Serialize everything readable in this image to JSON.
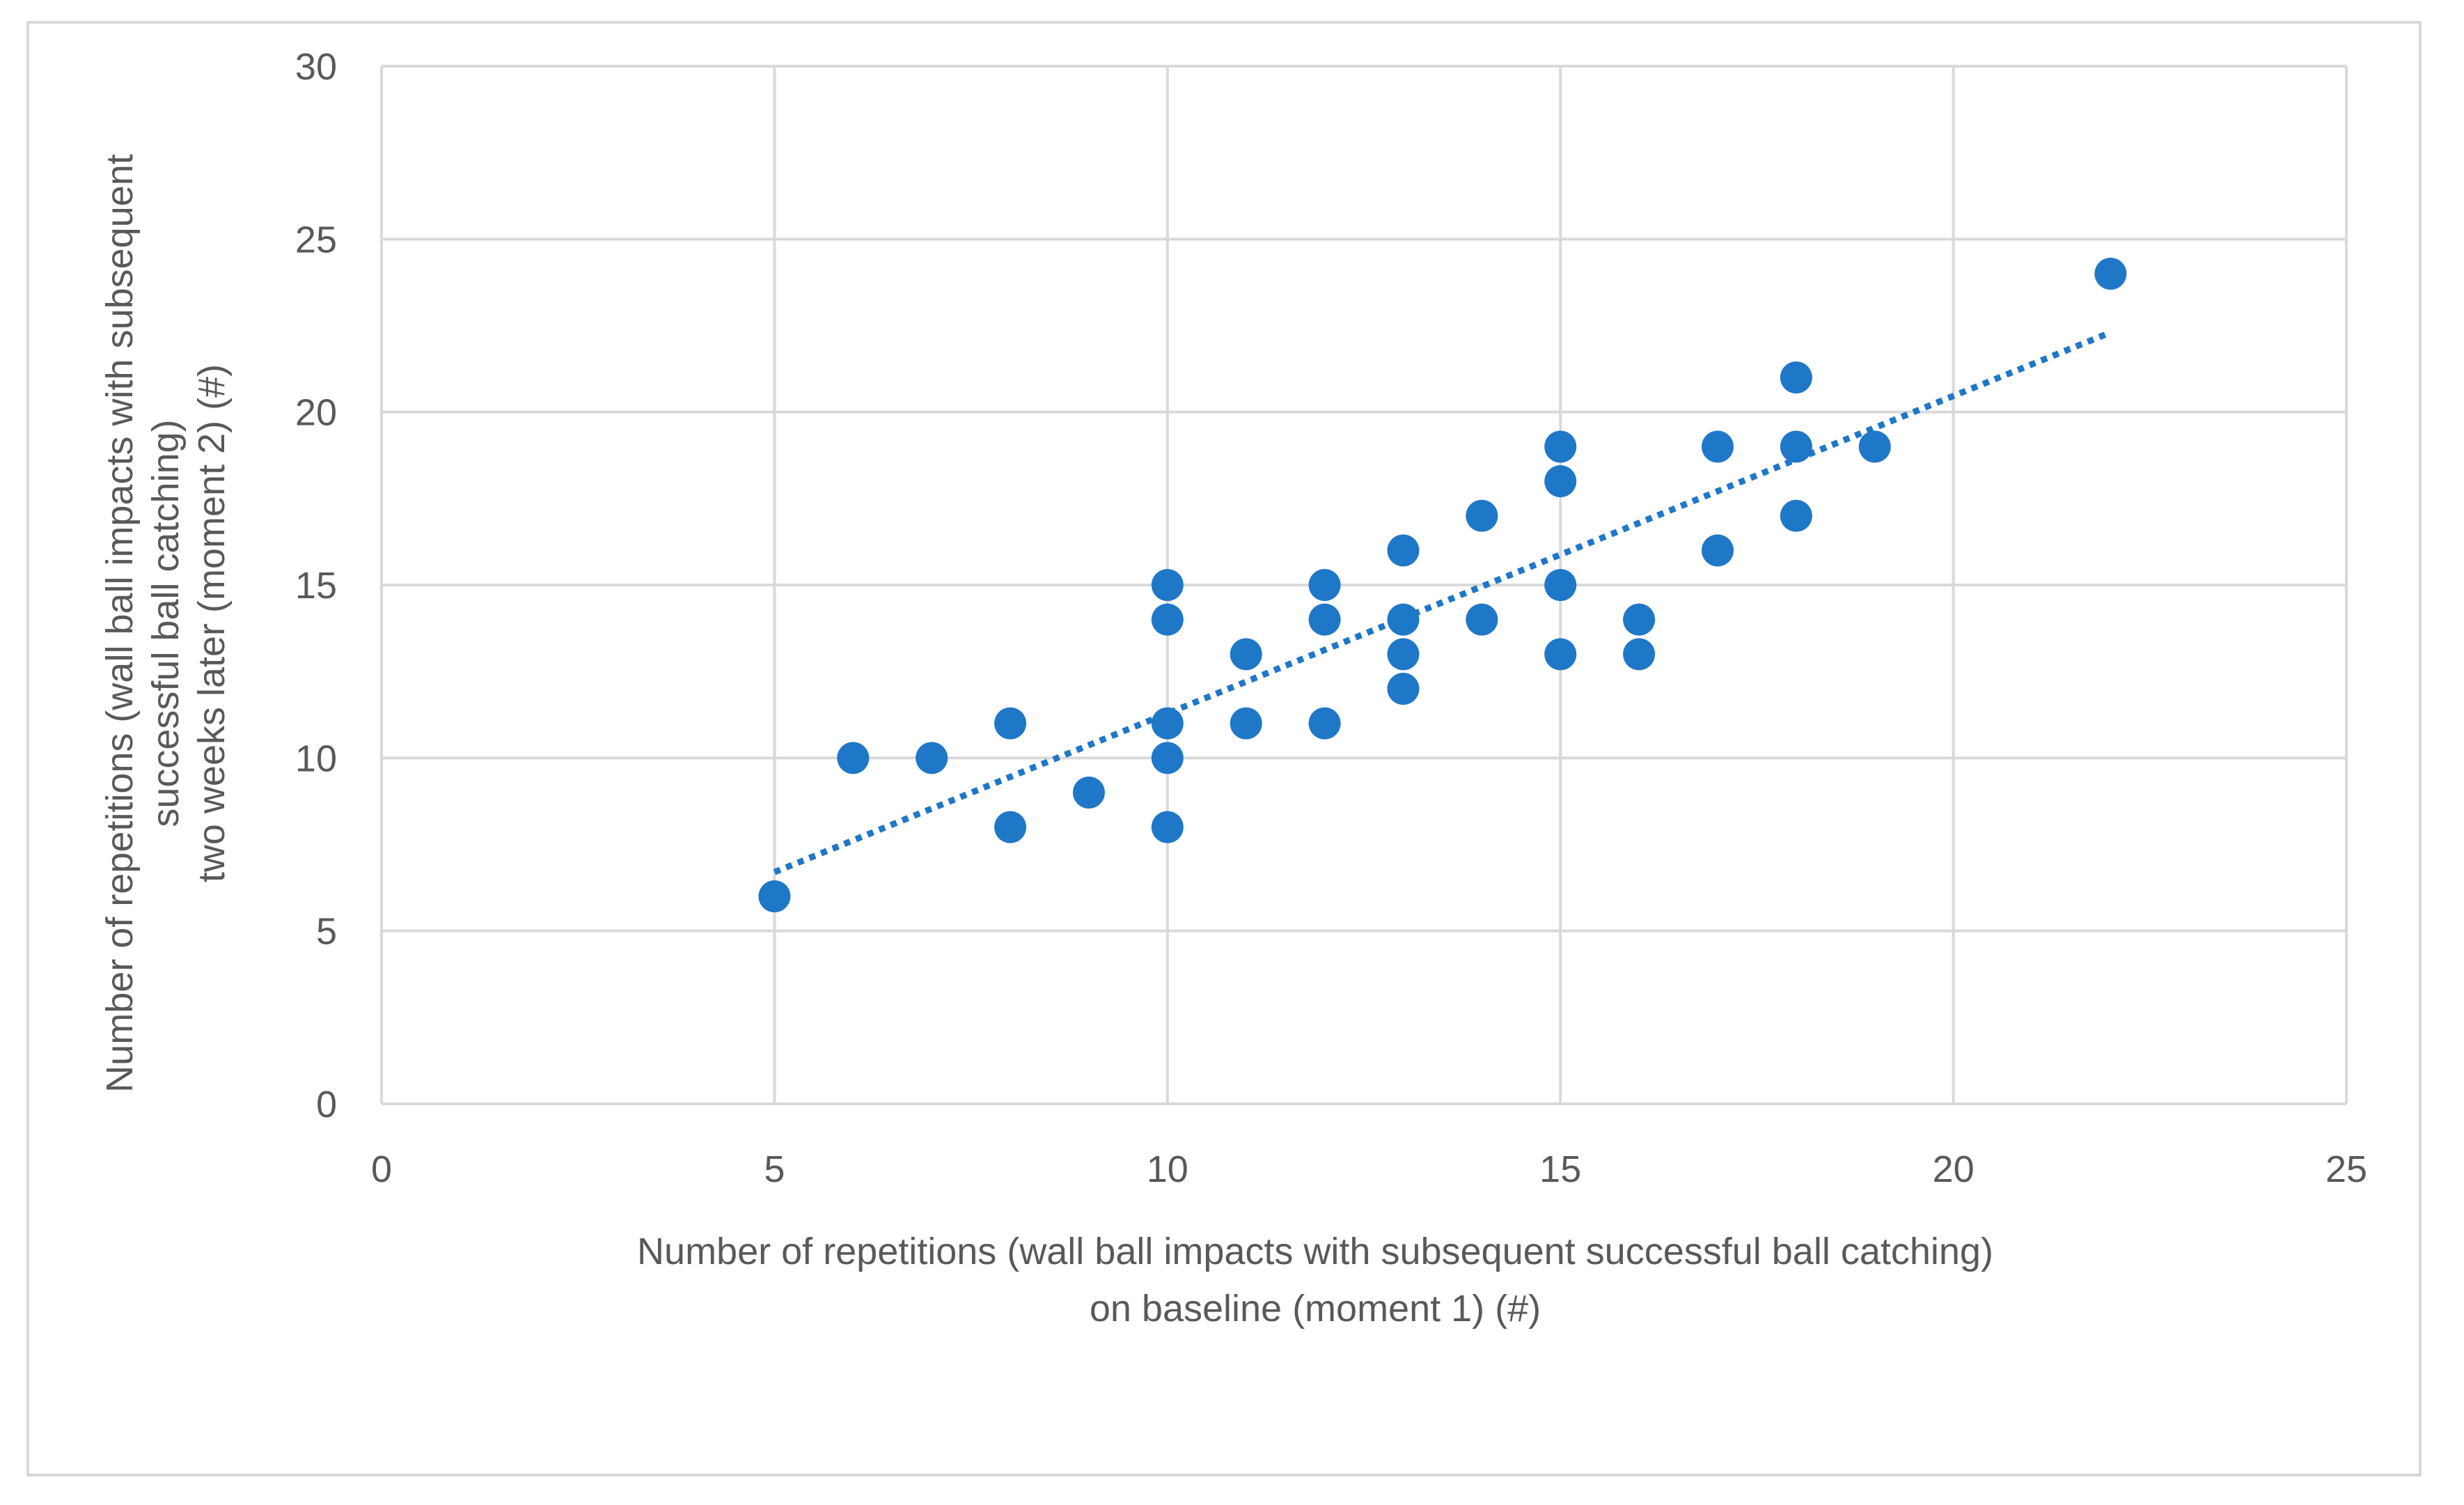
{
  "chart_data": {
    "type": "scatter",
    "title": "",
    "xlabel": [
      "Number of repetitions (wall ball impacts with subsequent successful ball catching)",
      "on baseline (moment 1) (#)"
    ],
    "ylabel": [
      "Number of repetitions (wall ball impacts with subsequent",
      "successful ball catching)",
      "two weeks later (moment 2) (#)"
    ],
    "xlim": [
      0,
      25
    ],
    "ylim": [
      0,
      30
    ],
    "x_ticks": [
      "0",
      "5",
      "10",
      "15",
      "20",
      "25"
    ],
    "y_ticks": [
      "0",
      "5",
      "10",
      "15",
      "20",
      "25",
      "30"
    ],
    "grid": true,
    "legend": "none",
    "series": [
      {
        "marker_color": "#1f77c8",
        "points": [
          {
            "x": 5,
            "y": 6
          },
          {
            "x": 6,
            "y": 10
          },
          {
            "x": 7,
            "y": 10
          },
          {
            "x": 8,
            "y": 11
          },
          {
            "x": 8,
            "y": 8
          },
          {
            "x": 9,
            "y": 9
          },
          {
            "x": 10,
            "y": 15
          },
          {
            "x": 10,
            "y": 14
          },
          {
            "x": 10,
            "y": 11
          },
          {
            "x": 10,
            "y": 10
          },
          {
            "x": 10,
            "y": 8
          },
          {
            "x": 11,
            "y": 13
          },
          {
            "x": 11,
            "y": 11
          },
          {
            "x": 12,
            "y": 15
          },
          {
            "x": 12,
            "y": 14
          },
          {
            "x": 12,
            "y": 11
          },
          {
            "x": 13,
            "y": 16
          },
          {
            "x": 13,
            "y": 14
          },
          {
            "x": 13,
            "y": 13
          },
          {
            "x": 13,
            "y": 12
          },
          {
            "x": 14,
            "y": 17
          },
          {
            "x": 14,
            "y": 14
          },
          {
            "x": 15,
            "y": 19
          },
          {
            "x": 15,
            "y": 18
          },
          {
            "x": 15,
            "y": 15
          },
          {
            "x": 15,
            "y": 13
          },
          {
            "x": 16,
            "y": 14
          },
          {
            "x": 16,
            "y": 13
          },
          {
            "x": 17,
            "y": 19
          },
          {
            "x": 17,
            "y": 16
          },
          {
            "x": 18,
            "y": 21
          },
          {
            "x": 18,
            "y": 19
          },
          {
            "x": 18,
            "y": 17
          },
          {
            "x": 19,
            "y": 19
          },
          {
            "x": 22,
            "y": 24
          }
        ]
      }
    ],
    "trendline": {
      "type": "linear",
      "style": "dotted",
      "color": "#1f77c8",
      "x_start": 5,
      "y_start": 6.7,
      "x_end": 22,
      "y_end": 22.3
    }
  }
}
